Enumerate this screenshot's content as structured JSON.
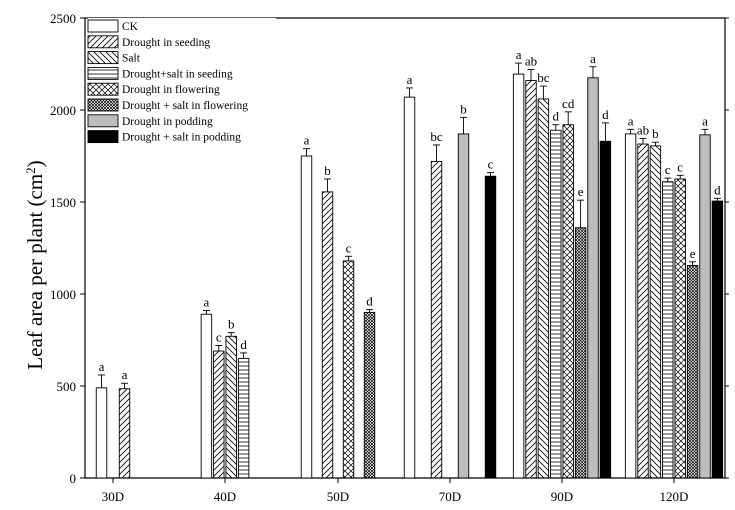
{
  "chart_data": {
    "type": "bar",
    "categories": [
      "30D",
      "40D",
      "50D",
      "70D",
      "90D",
      "120D"
    ],
    "ylabel": "Leaf area per plant (cm",
    "ylabel_sup": "2",
    "ylabel_close": ")",
    "ylim": [
      0,
      2500
    ],
    "yticks": [
      "0",
      "500",
      "1000",
      "1500",
      "2000",
      "2500"
    ],
    "legend_position": "top-left",
    "series": [
      {
        "name": "CK",
        "pattern": "blank",
        "values": [
          490,
          890,
          1750,
          2070,
          2195,
          1870
        ],
        "errors": [
          70,
          20,
          40,
          50,
          60,
          25
        ],
        "labels": [
          "a",
          "a",
          "a",
          "a",
          "a",
          "a"
        ]
      },
      {
        "name": "Drought in seeding",
        "pattern": "diag-up",
        "values": [
          485,
          690,
          1555,
          1720,
          2160,
          1815
        ],
        "errors": [
          30,
          30,
          70,
          90,
          60,
          30
        ],
        "labels": [
          "a",
          "c",
          "b",
          "bc",
          "ab",
          "ab"
        ]
      },
      {
        "name": "Salt",
        "pattern": "diag-down",
        "values": [
          null,
          770,
          null,
          null,
          2060,
          1805
        ],
        "errors": [
          null,
          20,
          null,
          null,
          70,
          20
        ],
        "labels": [
          "",
          "b",
          "",
          "",
          "bc",
          "b"
        ]
      },
      {
        "name": "Drought+salt in seeding",
        "pattern": "horizontal",
        "values": [
          null,
          650,
          null,
          null,
          1890,
          1610
        ],
        "errors": [
          null,
          30,
          null,
          null,
          30,
          20
        ],
        "labels": [
          "",
          "d",
          "",
          "",
          "d",
          "c"
        ]
      },
      {
        "name": "Drought in flowering",
        "pattern": "crosshatch",
        "values": [
          null,
          null,
          1180,
          null,
          1920,
          1625
        ],
        "errors": [
          null,
          null,
          25,
          null,
          70,
          20
        ],
        "labels": [
          "",
          "",
          "c",
          "",
          "cd",
          "c"
        ]
      },
      {
        "name": "Drought + salt in flowering",
        "pattern": "dense",
        "values": [
          null,
          null,
          900,
          null,
          1360,
          1155
        ],
        "errors": [
          null,
          null,
          15,
          null,
          150,
          20
        ],
        "labels": [
          "",
          "",
          "d",
          "",
          "e",
          "e"
        ]
      },
      {
        "name": "Drought in podding",
        "pattern": "gray",
        "values": [
          null,
          null,
          null,
          1870,
          2175,
          1865
        ],
        "errors": [
          null,
          null,
          null,
          90,
          60,
          30
        ],
        "labels": [
          "",
          "",
          "",
          "b",
          "a",
          "a"
        ]
      },
      {
        "name": "Drought + salt in podding",
        "pattern": "black",
        "values": [
          null,
          null,
          null,
          1640,
          1830,
          1505
        ],
        "errors": [
          null,
          null,
          null,
          20,
          100,
          15
        ],
        "labels": [
          "",
          "",
          "",
          "c",
          "d",
          "d"
        ]
      }
    ]
  }
}
